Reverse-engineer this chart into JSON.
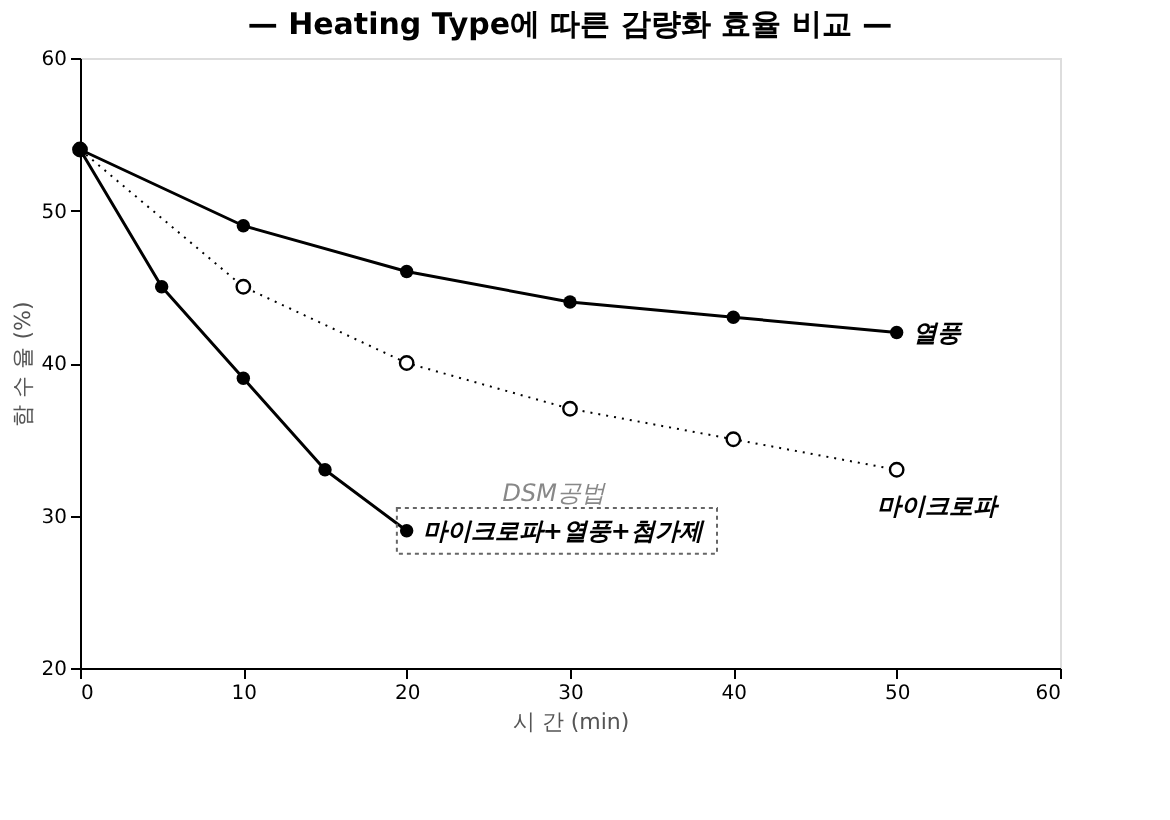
{
  "chart_data": {
    "type": "line",
    "title": "— Heating Type에 따른 감량화 효율 비교 —",
    "xlabel": "시 간 (min)",
    "ylabel": "함 수 율 (%)",
    "xlim": [
      0,
      60
    ],
    "xticks": [
      0,
      10,
      20,
      30,
      40,
      50,
      60
    ],
    "ylim": [
      20,
      60
    ],
    "yticks": [
      20,
      30,
      40,
      50,
      60
    ],
    "grid": false,
    "marker": "circle",
    "annotations": [
      "DSM공법"
    ],
    "series": [
      {
        "name": "열풍",
        "color": "#000000",
        "line_style": "solid",
        "x": [
          0,
          10,
          20,
          30,
          40,
          50
        ],
        "values": [
          54,
          49,
          46,
          44,
          43,
          42
        ]
      },
      {
        "name": "마이크로파",
        "color": "#000000",
        "line_style": "dotted",
        "x": [
          0,
          10,
          20,
          30,
          40,
          50
        ],
        "values": [
          54,
          45,
          40,
          37,
          35,
          33
        ]
      },
      {
        "name": "마이크로파+열풍+첨가제",
        "color": "#000000",
        "line_style": "solid",
        "x": [
          0,
          5,
          10,
          15,
          20
        ],
        "values": [
          54,
          45,
          39,
          33,
          29
        ]
      }
    ]
  }
}
